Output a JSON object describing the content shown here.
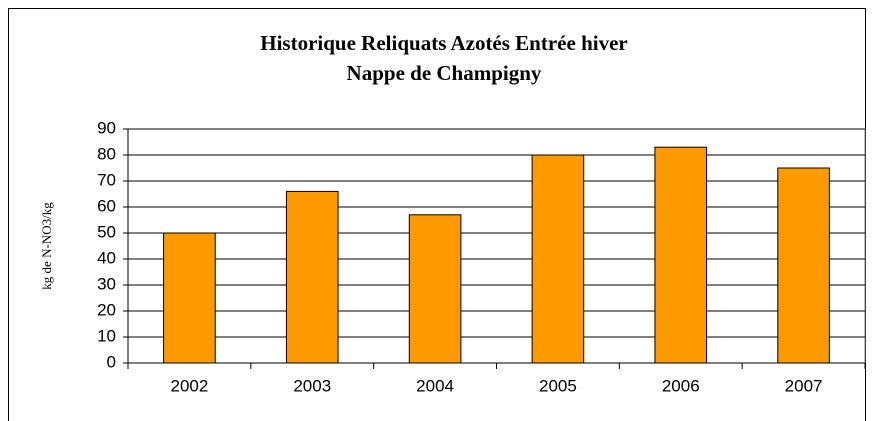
{
  "chart_data": {
    "type": "bar",
    "title": "Historique Reliquats Azotés Entrée hiver",
    "subtitle": "Nappe de Champigny",
    "y_label": "kg de N-NO3/kg",
    "categories": [
      "2002",
      "2003",
      "2004",
      "2005",
      "2006",
      "2007"
    ],
    "values": [
      50,
      66,
      57,
      80,
      83,
      75
    ],
    "color": "#ff9900",
    "ylim": [
      0,
      90
    ],
    "yticks": [
      0,
      10,
      20,
      30,
      40,
      50,
      60,
      70,
      80,
      90
    ],
    "grid": true
  }
}
